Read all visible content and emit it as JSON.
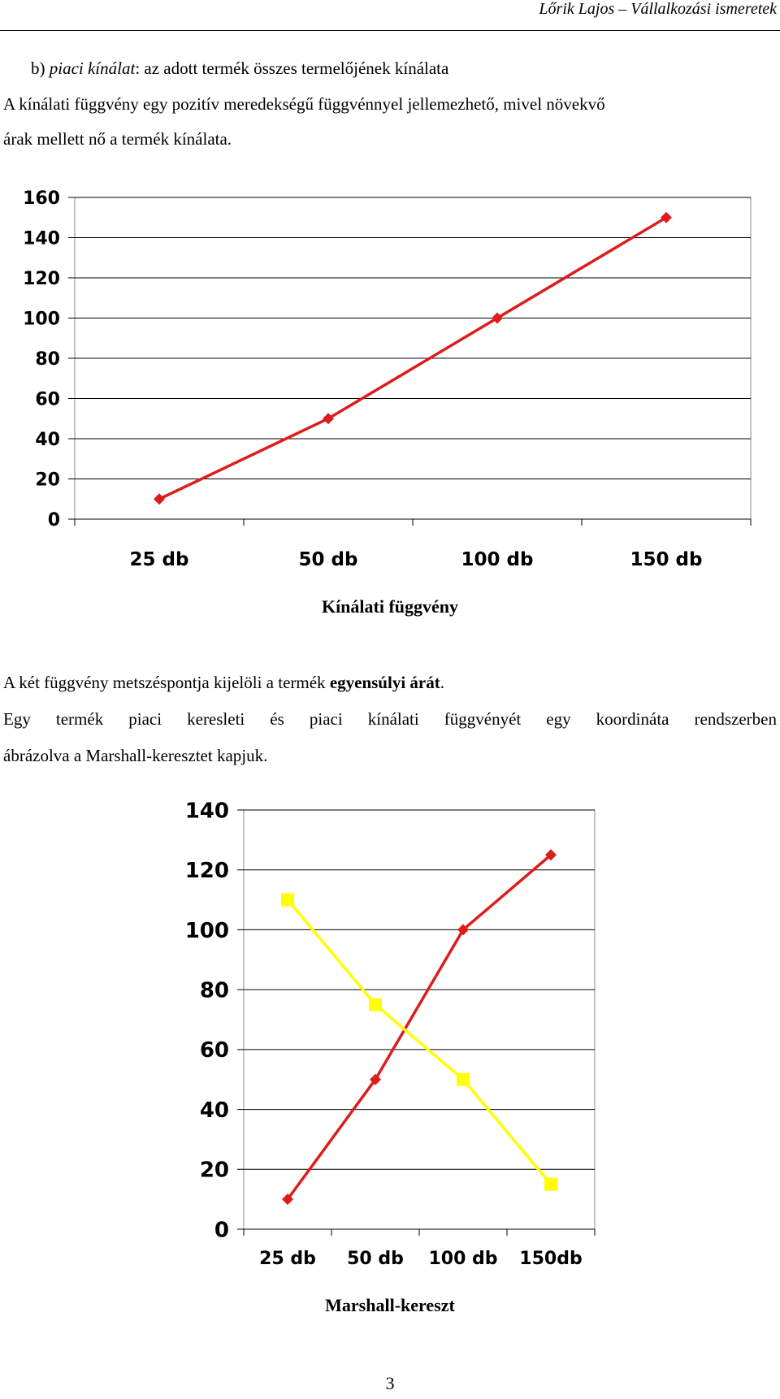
{
  "header": {
    "running_title": "Lőrik Lajos – Vállalkozási ismeretek"
  },
  "text": {
    "item_b_prefix": "b) ",
    "item_b_term": "piaci kínálat",
    "item_b_rest": ": az adott termék összes termelőjének kínálata",
    "supply_line1": "A kínálati függvény egy pozitív meredekségű függvénnyel jellemezhető, mivel növekvő",
    "supply_line2": "árak mellett nő a termék kínálata.",
    "equilibrium_pre": "A két függvény metszéspontja kijelöli a termék ",
    "equilibrium_bold": "egyensúlyi árát",
    "equilibrium_post": ".",
    "marshall_line1": "Egy termék piaci keresleti és piaci kínálati függvényét egy koordináta rendszerben",
    "marshall_line2": "ábrázolva a Marshall-keresztet kapjuk."
  },
  "captions": {
    "supply_chart": "Kínálati függvény",
    "marshall_chart": "Marshall-kereszt"
  },
  "page_number": "3",
  "chart_data": [
    {
      "type": "line",
      "title": "",
      "categories": [
        "25 db",
        "50 db",
        "100 db",
        "150 db"
      ],
      "yticks": [
        0,
        20,
        40,
        60,
        80,
        100,
        120,
        140,
        160
      ],
      "ylim": [
        0,
        160
      ],
      "grid": true,
      "series": [
        {
          "values": [
            10,
            50,
            100,
            150
          ],
          "color": "#dd1c1c",
          "marker": "diamond"
        }
      ]
    },
    {
      "type": "line",
      "title": "",
      "categories": [
        "25 db",
        "50 db",
        "100 db",
        "150db"
      ],
      "yticks": [
        0,
        20,
        40,
        60,
        80,
        100,
        120,
        140
      ],
      "ylim": [
        0,
        140
      ],
      "grid": true,
      "series": [
        {
          "values": [
            10,
            50,
            100,
            125
          ],
          "color": "#dd1c1c",
          "marker": "diamond"
        },
        {
          "values": [
            110,
            75,
            50,
            15
          ],
          "color": "#ffff00",
          "marker": "square"
        }
      ]
    }
  ]
}
